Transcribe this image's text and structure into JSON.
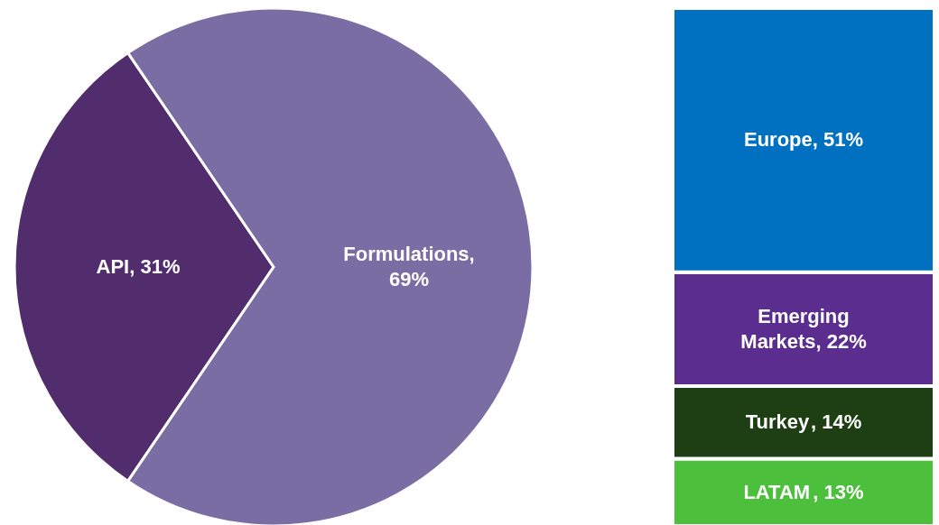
{
  "chart_data": [
    {
      "type": "pie",
      "categories": [
        "API",
        "Formulations"
      ],
      "values": [
        31,
        69
      ],
      "colors": [
        "#522d6e",
        "#7a6da3"
      ],
      "value_labels": [
        ", 31%",
        ", 69%"
      ],
      "legend": false
    },
    {
      "type": "bar",
      "stacked": true,
      "categories": [
        null
      ],
      "legend": false,
      "series": [
        {
          "name": "LATAM",
          "color": "#4cbf3c",
          "values": [
            13
          ],
          "value_labels": [
            ", 13%"
          ]
        },
        {
          "name": "Turkey",
          "color": "#1e3f14",
          "values": [
            14
          ],
          "value_labels": [
            ", 14%"
          ]
        },
        {
          "name": "Emerging Markets",
          "color": "#5b2d8e",
          "values": [
            22
          ],
          "value_labels": [
            ", 22%"
          ]
        },
        {
          "name": "Europe",
          "color": "#0070c0",
          "values": [
            51
          ],
          "value_labels": [
            ", 51%"
          ]
        }
      ]
    }
  ]
}
